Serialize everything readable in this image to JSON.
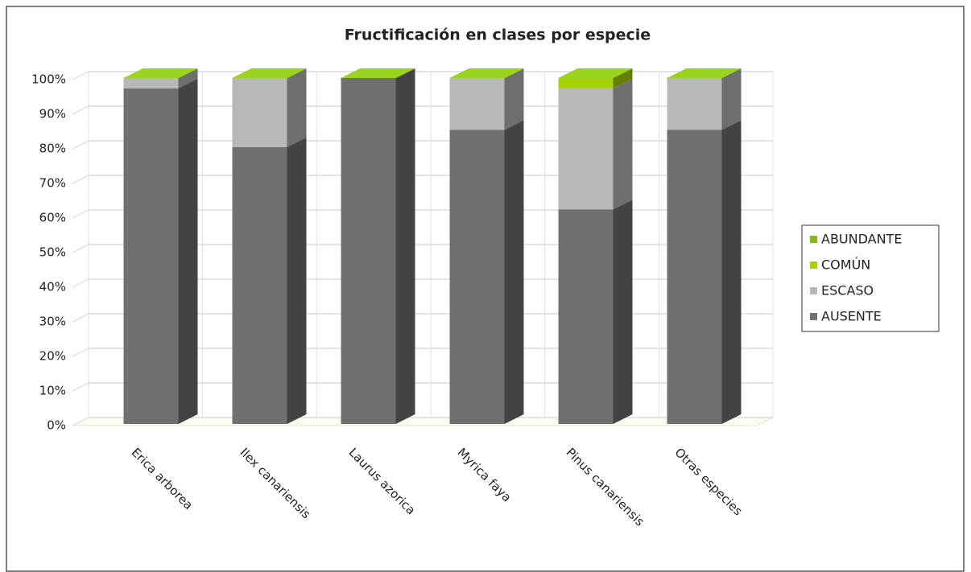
{
  "chart_data": {
    "type": "bar3d_stacked",
    "title": "Fructificación en clases por especie",
    "categories": [
      "Erica arborea",
      "Ilex canariensis",
      "Laurus azorica",
      "Myrica faya",
      "Pinus canariensis",
      "Otras especies"
    ],
    "series": [
      {
        "name": "AUSENTE",
        "color": "#707070",
        "values": [
          97,
          80,
          100,
          85,
          62,
          85
        ]
      },
      {
        "name": "ESCASO",
        "color": "#b8b8b8",
        "values": [
          3,
          20,
          0,
          15,
          35,
          15
        ]
      },
      {
        "name": "COMÚN",
        "color": "#a6d20a",
        "values": [
          0,
          0,
          0,
          0,
          3,
          0
        ]
      },
      {
        "name": "ABUNDANTE",
        "color": "#86b81a",
        "values": [
          0,
          0,
          0,
          0,
          0,
          0
        ]
      }
    ],
    "ylim": [
      0,
      100
    ],
    "yticks": [
      {
        "value": 0,
        "label": "0%"
      },
      {
        "value": 10,
        "label": "10%"
      },
      {
        "value": 20,
        "label": "20%"
      },
      {
        "value": 30,
        "label": "30%"
      },
      {
        "value": 40,
        "label": "40%"
      },
      {
        "value": 50,
        "label": "50%"
      },
      {
        "value": 60,
        "label": "60%"
      },
      {
        "value": 70,
        "label": "70%"
      },
      {
        "value": 80,
        "label": "80%"
      },
      {
        "value": 90,
        "label": "90%"
      },
      {
        "value": 100,
        "label": "100%"
      }
    ],
    "grid": true,
    "legend": "right"
  }
}
